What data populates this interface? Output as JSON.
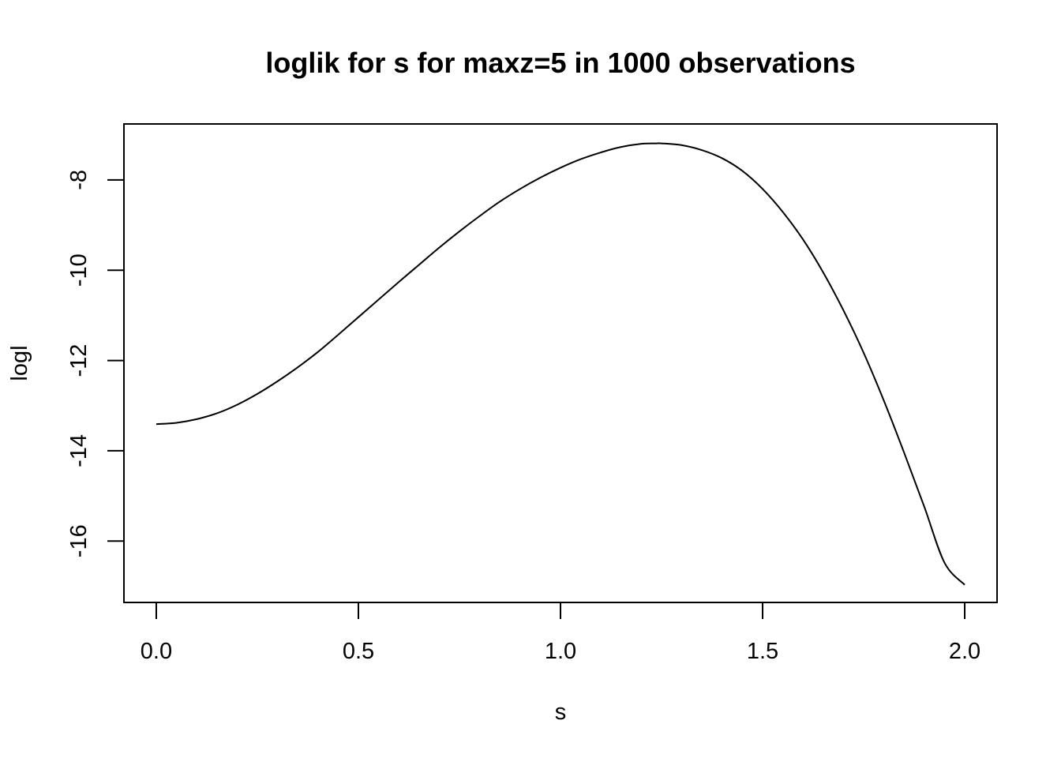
{
  "chart_data": {
    "type": "line",
    "title": "loglik for s for maxz=5 in 1000 observations",
    "xlabel": "s",
    "ylabel": "logl",
    "xlim": [
      -0.08,
      2.08
    ],
    "ylim": [
      -17.36,
      -6.76
    ],
    "x_ticks": [
      0.0,
      0.5,
      1.0,
      1.5,
      2.0
    ],
    "x_tick_labels": [
      "0.0",
      "0.5",
      "1.0",
      "1.5",
      "2.0"
    ],
    "y_ticks": [
      -16,
      -14,
      -12,
      -10,
      -8
    ],
    "y_tick_labels": [
      "-16",
      "-14",
      "-12",
      "-10",
      "-8"
    ],
    "grid": false,
    "legend": "none",
    "line_color": "#000000",
    "series": [
      {
        "x": [
          0.0,
          0.05,
          0.1,
          0.15,
          0.2,
          0.25,
          0.3,
          0.35,
          0.4,
          0.45,
          0.5,
          0.55,
          0.6,
          0.65,
          0.7,
          0.75,
          0.8,
          0.85,
          0.9,
          0.95,
          1.0,
          1.05,
          1.1,
          1.15,
          1.2,
          1.235,
          1.25,
          1.3,
          1.35,
          1.4,
          1.45,
          1.5,
          1.55,
          1.6,
          1.65,
          1.7,
          1.75,
          1.8,
          1.85,
          1.9,
          1.95,
          2.0
        ],
        "y": [
          -13.41,
          -13.38,
          -13.3,
          -13.17,
          -12.98,
          -12.74,
          -12.46,
          -12.15,
          -11.81,
          -11.43,
          -11.04,
          -10.65,
          -10.26,
          -9.88,
          -9.5,
          -9.14,
          -8.8,
          -8.48,
          -8.2,
          -7.95,
          -7.73,
          -7.54,
          -7.39,
          -7.27,
          -7.2,
          -7.19,
          -7.19,
          -7.23,
          -7.34,
          -7.52,
          -7.8,
          -8.2,
          -8.71,
          -9.32,
          -10.05,
          -10.89,
          -11.83,
          -12.89,
          -14.04,
          -15.24,
          -16.48,
          -16.97
        ]
      }
    ]
  }
}
